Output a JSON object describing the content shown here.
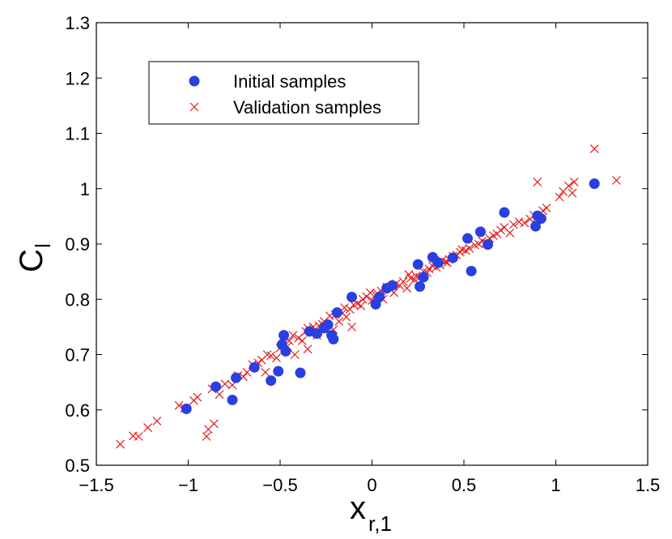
{
  "chart_data": {
    "type": "scatter",
    "title": "",
    "xlabel": "x",
    "xlabel_subscript": "r,1",
    "ylabel": "C",
    "ylabel_subscript": "l",
    "xlim": [
      -1.5,
      1.5
    ],
    "ylim": [
      0.5,
      1.3
    ],
    "xticks": [
      -1.5,
      -1,
      -0.5,
      0,
      0.5,
      1,
      1.5
    ],
    "xtick_labels": [
      "−1.5",
      "−1",
      "−0.5",
      "0",
      "0.5",
      "1",
      "1.5"
    ],
    "yticks": [
      0.5,
      0.6,
      0.7,
      0.8,
      0.9,
      1,
      1.1,
      1.2,
      1.3
    ],
    "ytick_labels": [
      "0.5",
      "0.6",
      "0.7",
      "0.8",
      "0.9",
      "1",
      "1.1",
      "1.2",
      "1.3"
    ],
    "grid": false,
    "legend_position": "top-left",
    "series": [
      {
        "name": "Initial samples",
        "marker": "circle",
        "color": "#2a3fe0",
        "x": [
          -1.01,
          -0.85,
          -0.74,
          -0.76,
          -0.64,
          -0.55,
          -0.51,
          -0.49,
          -0.47,
          -0.48,
          -0.39,
          -0.34,
          -0.3,
          -0.26,
          -0.24,
          -0.22,
          -0.21,
          -0.19,
          -0.11,
          0.02,
          0.04,
          0.08,
          0.11,
          0.25,
          0.26,
          0.28,
          0.33,
          0.36,
          0.44,
          0.52,
          0.54,
          0.59,
          0.63,
          0.72,
          0.89,
          0.9,
          0.92,
          1.21
        ],
        "y": [
          0.602,
          0.642,
          0.658,
          0.618,
          0.677,
          0.653,
          0.67,
          0.718,
          0.706,
          0.735,
          0.667,
          0.742,
          0.738,
          0.748,
          0.754,
          0.735,
          0.728,
          0.776,
          0.804,
          0.791,
          0.804,
          0.82,
          0.825,
          0.863,
          0.823,
          0.84,
          0.876,
          0.866,
          0.875,
          0.91,
          0.851,
          0.922,
          0.899,
          0.957,
          0.932,
          0.951,
          0.946,
          1.009
        ]
      },
      {
        "name": "Validation samples",
        "marker": "x",
        "color": "#e41a1a",
        "x": [
          -1.37,
          -1.3,
          -1.27,
          -1.22,
          -1.17,
          -1.05,
          -1.02,
          -0.97,
          -0.95,
          -0.9,
          -0.87,
          -0.86,
          -0.83,
          -0.8,
          -0.76,
          -0.73,
          -0.7,
          -0.68,
          -0.65,
          -0.62,
          -0.6,
          -0.58,
          -0.57,
          -0.55,
          -0.52,
          -0.5,
          -0.48,
          -0.46,
          -0.45,
          -0.43,
          -0.42,
          -0.4,
          -0.38,
          -0.36,
          -0.35,
          -0.34,
          -0.33,
          -0.32,
          -0.3,
          -0.29,
          -0.27,
          -0.26,
          -0.25,
          -0.23,
          -0.21,
          -0.2,
          -0.18,
          -0.16,
          -0.14,
          -0.12,
          -0.11,
          -0.1,
          -0.08,
          -0.06,
          -0.05,
          -0.03,
          -0.01,
          0.0,
          0.02,
          0.03,
          0.05,
          0.06,
          0.08,
          0.1,
          0.12,
          0.13,
          0.15,
          0.17,
          0.19,
          0.21,
          0.23,
          0.24,
          0.26,
          0.28,
          0.3,
          0.31,
          0.33,
          0.35,
          0.37,
          0.38,
          0.4,
          0.42,
          0.44,
          0.46,
          0.48,
          0.49,
          0.51,
          0.53,
          0.56,
          0.58,
          0.6,
          0.62,
          0.64,
          0.66,
          0.68,
          0.7,
          0.72,
          0.75,
          0.77,
          0.8,
          0.83,
          0.86,
          0.88,
          0.9,
          0.93,
          0.95,
          1.02,
          1.04,
          1.07,
          1.09,
          1.1,
          1.21,
          1.33,
          -0.89,
          -0.35,
          -0.15,
          0.2,
          0.41,
          0.9
        ],
        "y": [
          0.538,
          0.553,
          0.552,
          0.568,
          0.58,
          0.608,
          0.603,
          0.617,
          0.623,
          0.552,
          0.638,
          0.575,
          0.628,
          0.647,
          0.645,
          0.662,
          0.66,
          0.668,
          0.682,
          0.685,
          0.69,
          0.668,
          0.7,
          0.698,
          0.694,
          0.712,
          0.72,
          0.715,
          0.725,
          0.735,
          0.7,
          0.73,
          0.725,
          0.742,
          0.748,
          0.745,
          0.74,
          0.75,
          0.735,
          0.752,
          0.755,
          0.76,
          0.748,
          0.77,
          0.745,
          0.772,
          0.76,
          0.775,
          0.768,
          0.782,
          0.75,
          0.79,
          0.792,
          0.788,
          0.8,
          0.805,
          0.812,
          0.798,
          0.808,
          0.81,
          0.815,
          0.8,
          0.822,
          0.818,
          0.812,
          0.828,
          0.825,
          0.832,
          0.82,
          0.838,
          0.835,
          0.842,
          0.84,
          0.85,
          0.848,
          0.855,
          0.86,
          0.858,
          0.862,
          0.87,
          0.868,
          0.872,
          0.878,
          0.88,
          0.885,
          0.89,
          0.888,
          0.892,
          0.898,
          0.9,
          0.905,
          0.902,
          0.91,
          0.915,
          0.918,
          0.925,
          0.93,
          0.92,
          0.935,
          0.94,
          0.938,
          0.945,
          0.952,
          0.948,
          0.96,
          0.965,
          0.985,
          0.995,
          1.005,
          0.992,
          1.012,
          1.072,
          1.015,
          0.565,
          0.71,
          0.785,
          0.845,
          0.866,
          1.012
        ]
      }
    ]
  }
}
